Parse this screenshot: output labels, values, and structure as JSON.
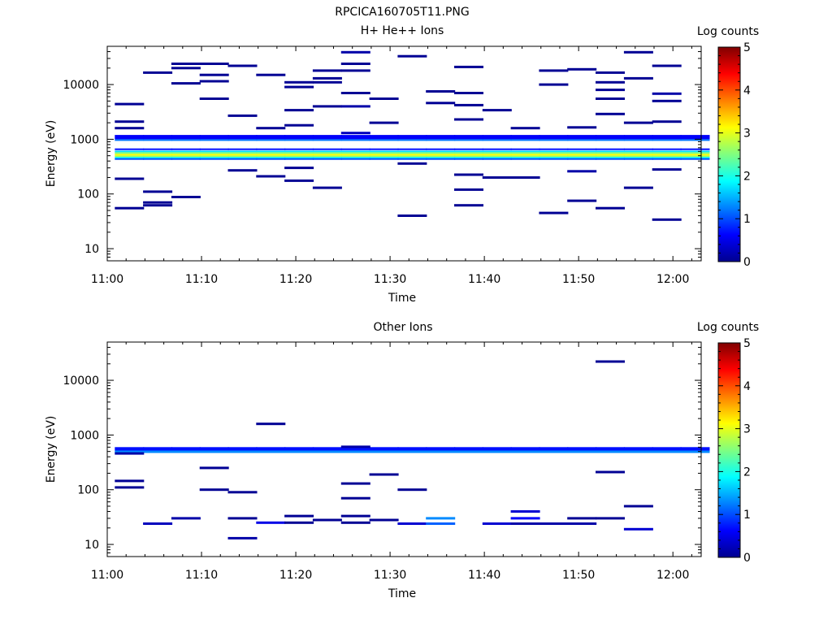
{
  "figure": {
    "title": "RPCICA160705T11.PNG"
  },
  "colorbar": {
    "label": "Log counts",
    "range": [
      0,
      5
    ],
    "ticks": [
      "0",
      "1",
      "2",
      "3",
      "4",
      "5"
    ]
  },
  "chart_data": [
    {
      "type": "heatmap",
      "title": "H+ He++ Ions",
      "xlabel": "Time",
      "ylabel": "Energy (eV)",
      "x_ticks": [
        "11:00",
        "11:10",
        "11:20",
        "11:30",
        "11:40",
        "11:50",
        "12:00"
      ],
      "y_ticks": [
        "10",
        "100",
        "1000",
        "10000"
      ],
      "y_scale": "log",
      "xlim_minutes": [
        0,
        63
      ],
      "ylim": [
        6,
        50000
      ],
      "colorbar_label": "Log counts",
      "color_range": [
        0,
        5
      ],
      "time_bins_start_min": [
        0.8,
        3.8,
        6.8,
        9.8,
        12.8,
        15.8,
        18.8,
        21.8,
        24.8,
        27.8,
        30.8,
        33.8,
        36.8,
        39.8,
        42.8,
        45.8,
        48.8,
        51.8,
        54.8,
        57.8,
        60.8
      ],
      "time_bin_width_min": 3.1,
      "background_energies_eV": [
        55,
        200,
        2000,
        4500,
        7000,
        10500,
        16000,
        22000,
        28000,
        35000
      ],
      "cells": [
        {
          "bin": 0,
          "e": 1600,
          "c": 0.1
        },
        {
          "bin": 0,
          "e": 4400,
          "c": 0.1
        },
        {
          "bin": 0,
          "e": 190,
          "c": 0.1
        },
        {
          "bin": 0,
          "e": 55,
          "c": 0.1
        },
        {
          "bin": 0,
          "e": 2100,
          "c": 0.1
        },
        {
          "bin": 1,
          "e": 16500,
          "c": 0.1
        },
        {
          "bin": 1,
          "e": 110,
          "c": 0.1
        },
        {
          "bin": 1,
          "e": 70,
          "c": 0.1
        },
        {
          "bin": 1,
          "e": 62,
          "c": 0.1
        },
        {
          "bin": 2,
          "e": 24000,
          "c": 0.1
        },
        {
          "bin": 2,
          "e": 20000,
          "c": 0.1
        },
        {
          "bin": 2,
          "e": 10500,
          "c": 0.1
        },
        {
          "bin": 2,
          "e": 88,
          "c": 0.1
        },
        {
          "bin": 3,
          "e": 24000,
          "c": 0.1
        },
        {
          "bin": 3,
          "e": 15000,
          "c": 0.1
        },
        {
          "bin": 3,
          "e": 11500,
          "c": 0.1
        },
        {
          "bin": 3,
          "e": 5500,
          "c": 0.1
        },
        {
          "bin": 4,
          "e": 22000,
          "c": 0.1
        },
        {
          "bin": 4,
          "e": 2700,
          "c": 0.1
        },
        {
          "bin": 4,
          "e": 270,
          "c": 0.1
        },
        {
          "bin": 5,
          "e": 15000,
          "c": 0.1
        },
        {
          "bin": 5,
          "e": 1600,
          "c": 0.1
        },
        {
          "bin": 5,
          "e": 210,
          "c": 0.1
        },
        {
          "bin": 6,
          "e": 11000,
          "c": 0.1
        },
        {
          "bin": 6,
          "e": 9000,
          "c": 0.1
        },
        {
          "bin": 6,
          "e": 3400,
          "c": 0.1
        },
        {
          "bin": 6,
          "e": 1800,
          "c": 0.1
        },
        {
          "bin": 6,
          "e": 300,
          "c": 0.1
        },
        {
          "bin": 6,
          "e": 175,
          "c": 0.1
        },
        {
          "bin": 7,
          "e": 18000,
          "c": 0.1
        },
        {
          "bin": 7,
          "e": 13000,
          "c": 0.1
        },
        {
          "bin": 7,
          "e": 11000,
          "c": 0.1
        },
        {
          "bin": 7,
          "e": 4000,
          "c": 0.1
        },
        {
          "bin": 7,
          "e": 130,
          "c": 0.1
        },
        {
          "bin": 8,
          "e": 39000,
          "c": 0.2
        },
        {
          "bin": 8,
          "e": 24000,
          "c": 0.1
        },
        {
          "bin": 8,
          "e": 18000,
          "c": 0.1
        },
        {
          "bin": 8,
          "e": 7000,
          "c": 0.1
        },
        {
          "bin": 8,
          "e": 4000,
          "c": 0.2
        },
        {
          "bin": 8,
          "e": 1300,
          "c": 0.3
        },
        {
          "bin": 9,
          "e": 5500,
          "c": 0.1
        },
        {
          "bin": 9,
          "e": 2000,
          "c": 0.1
        },
        {
          "bin": 10,
          "e": 33000,
          "c": 0.1
        },
        {
          "bin": 10,
          "e": 40,
          "c": 0.1
        },
        {
          "bin": 10,
          "e": 360,
          "c": 0.1
        },
        {
          "bin": 11,
          "e": 7500,
          "c": 0.1
        },
        {
          "bin": 11,
          "e": 4600,
          "c": 0.1
        },
        {
          "bin": 12,
          "e": 21000,
          "c": 0.1
        },
        {
          "bin": 12,
          "e": 7000,
          "c": 0.1
        },
        {
          "bin": 12,
          "e": 4200,
          "c": 0.1
        },
        {
          "bin": 12,
          "e": 2300,
          "c": 0.1
        },
        {
          "bin": 12,
          "e": 225,
          "c": 0.1
        },
        {
          "bin": 12,
          "e": 120,
          "c": 0.1
        },
        {
          "bin": 12,
          "e": 62,
          "c": 0.1
        },
        {
          "bin": 13,
          "e": 3400,
          "c": 0.1
        },
        {
          "bin": 13,
          "e": 200,
          "c": 0.1
        },
        {
          "bin": 14,
          "e": 1600,
          "c": 0.1
        },
        {
          "bin": 14,
          "e": 200,
          "c": 0.1
        },
        {
          "bin": 15,
          "e": 18000,
          "c": 0.1
        },
        {
          "bin": 15,
          "e": 10000,
          "c": 0.1
        },
        {
          "bin": 15,
          "e": 45,
          "c": 0.1
        },
        {
          "bin": 16,
          "e": 19000,
          "c": 0.1
        },
        {
          "bin": 16,
          "e": 1650,
          "c": 0.1
        },
        {
          "bin": 16,
          "e": 260,
          "c": 0.2
        },
        {
          "bin": 16,
          "e": 75,
          "c": 0.1
        },
        {
          "bin": 17,
          "e": 16500,
          "c": 0.1
        },
        {
          "bin": 17,
          "e": 11000,
          "c": 0.1
        },
        {
          "bin": 17,
          "e": 8000,
          "c": 0.1
        },
        {
          "bin": 17,
          "e": 5500,
          "c": 0.1
        },
        {
          "bin": 17,
          "e": 2900,
          "c": 0.1
        },
        {
          "bin": 17,
          "e": 55,
          "c": 0.1
        },
        {
          "bin": 18,
          "e": 39000,
          "c": 0.1
        },
        {
          "bin": 18,
          "e": 13000,
          "c": 0.1
        },
        {
          "bin": 18,
          "e": 2000,
          "c": 0.1
        },
        {
          "bin": 18,
          "e": 130,
          "c": 0.1
        },
        {
          "bin": 19,
          "e": 22000,
          "c": 0.1
        },
        {
          "bin": 19,
          "e": 6800,
          "c": 0.2
        },
        {
          "bin": 19,
          "e": 5000,
          "c": 0.1
        },
        {
          "bin": 19,
          "e": 2100,
          "c": 0.1
        },
        {
          "bin": 19,
          "e": 280,
          "c": 0.1
        },
        {
          "bin": 19,
          "e": 34,
          "c": 0.1
        }
      ],
      "bands": [
        {
          "e_lo": 1000,
          "e_hi": 1200,
          "c": 0.6
        },
        {
          "e_lo": 950,
          "e_hi": 1000,
          "c": 1.2
        },
        {
          "e_lo": 640,
          "e_hi": 680,
          "c": 0.7
        },
        {
          "e_lo": 580,
          "e_hi": 620,
          "c": 1.7
        },
        {
          "e_lo": 540,
          "e_hi": 580,
          "c": 2.5
        },
        {
          "e_lo": 505,
          "e_hi": 540,
          "c": 3.1
        },
        {
          "e_lo": 475,
          "e_hi": 505,
          "c": 2.7
        },
        {
          "e_lo": 450,
          "e_hi": 475,
          "c": 1.9
        },
        {
          "e_lo": 425,
          "e_hi": 450,
          "c": 1.0
        }
      ]
    },
    {
      "type": "heatmap",
      "title": "Other Ions",
      "xlabel": "Time",
      "ylabel": "Energy (eV)",
      "x_ticks": [
        "11:00",
        "11:10",
        "11:20",
        "11:30",
        "11:40",
        "11:50",
        "12:00"
      ],
      "y_ticks": [
        "10",
        "100",
        "1000",
        "10000"
      ],
      "y_scale": "log",
      "xlim_minutes": [
        0,
        63
      ],
      "ylim": [
        6,
        50000
      ],
      "colorbar_label": "Log counts",
      "color_range": [
        0,
        5
      ],
      "time_bins_start_min": [
        0.8,
        3.8,
        6.8,
        9.8,
        12.8,
        15.8,
        18.8,
        21.8,
        24.8,
        27.8,
        30.8,
        33.8,
        36.8,
        39.8,
        42.8,
        45.8,
        48.8,
        51.8,
        54.8,
        57.8,
        60.8
      ],
      "time_bin_width_min": 3.1,
      "cells": [
        {
          "bin": 0,
          "e": 145,
          "c": 0.1
        },
        {
          "bin": 0,
          "e": 110,
          "c": 0.1
        },
        {
          "bin": 0,
          "e": 460,
          "c": 0.2
        },
        {
          "bin": 1,
          "e": 24,
          "c": 0.3
        },
        {
          "bin": 2,
          "e": 30,
          "c": 0.2
        },
        {
          "bin": 3,
          "e": 250,
          "c": 0.1
        },
        {
          "bin": 3,
          "e": 100,
          "c": 0.1
        },
        {
          "bin": 4,
          "e": 30,
          "c": 0.1
        },
        {
          "bin": 4,
          "e": 90,
          "c": 0.1
        },
        {
          "bin": 4,
          "e": 13,
          "c": 0.2
        },
        {
          "bin": 5,
          "e": 1600,
          "c": 0.1
        },
        {
          "bin": 5,
          "e": 25,
          "c": 0.5
        },
        {
          "bin": 6,
          "e": 33,
          "c": 0.1
        },
        {
          "bin": 6,
          "e": 25,
          "c": 0.1
        },
        {
          "bin": 7,
          "e": 28,
          "c": 0.1
        },
        {
          "bin": 8,
          "e": 130,
          "c": 0.1
        },
        {
          "bin": 8,
          "e": 70,
          "c": 0.1
        },
        {
          "bin": 8,
          "e": 33,
          "c": 0.1
        },
        {
          "bin": 8,
          "e": 25,
          "c": 0.1
        },
        {
          "bin": 8,
          "e": 610,
          "c": 0.2
        },
        {
          "bin": 9,
          "e": 190,
          "c": 0.1
        },
        {
          "bin": 9,
          "e": 28,
          "c": 0.1
        },
        {
          "bin": 10,
          "e": 100,
          "c": 0.1
        },
        {
          "bin": 10,
          "e": 24,
          "c": 0.4
        },
        {
          "bin": 11,
          "e": 30,
          "c": 1.3
        },
        {
          "bin": 11,
          "e": 24,
          "c": 1.1
        },
        {
          "bin": 13,
          "e": 24,
          "c": 0.4
        },
        {
          "bin": 14,
          "e": 40,
          "c": 0.4
        },
        {
          "bin": 14,
          "e": 30,
          "c": 0.6
        },
        {
          "bin": 14,
          "e": 24,
          "c": 0.2
        },
        {
          "bin": 15,
          "e": 24,
          "c": 0.2
        },
        {
          "bin": 16,
          "e": 30,
          "c": 0.1
        },
        {
          "bin": 16,
          "e": 24,
          "c": 0.2
        },
        {
          "bin": 17,
          "e": 30,
          "c": 0.1
        },
        {
          "bin": 17,
          "e": 22000,
          "c": 0.1
        },
        {
          "bin": 17,
          "e": 210,
          "c": 0.1
        },
        {
          "bin": 18,
          "e": 50,
          "c": 0.1
        },
        {
          "bin": 18,
          "e": 19,
          "c": 0.4
        }
      ],
      "bands": [
        {
          "e_lo": 520,
          "e_hi": 600,
          "c": 0.7
        },
        {
          "e_lo": 470,
          "e_hi": 520,
          "c": 1.3
        }
      ]
    }
  ]
}
